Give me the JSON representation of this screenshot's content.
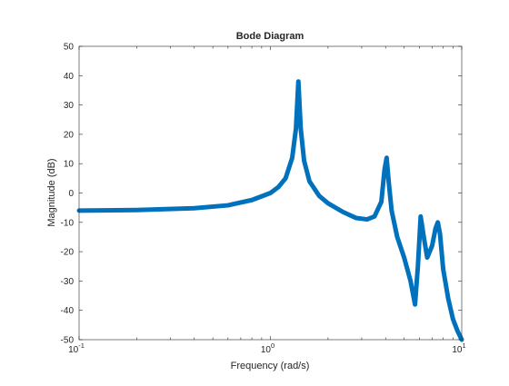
{
  "chart_data": {
    "type": "line",
    "title": "Bode Diagram",
    "xlabel": "Frequency  (rad/s)",
    "ylabel": "Magnitude (dB)",
    "xscale": "log",
    "xlim": [
      0.1,
      10
    ],
    "ylim": [
      -50,
      50
    ],
    "grid": false,
    "legend": "none",
    "x_ticks": [
      {
        "value": 0.1,
        "base": "10",
        "exp": "-1"
      },
      {
        "value": 1,
        "base": "10",
        "exp": "0"
      },
      {
        "value": 10,
        "base": "10",
        "exp": "1"
      }
    ],
    "y_ticks": [
      "50",
      "40",
      "30",
      "20",
      "10",
      "0",
      "-10",
      "-20",
      "-30",
      "-40",
      "-50"
    ],
    "series": [
      {
        "color": "#0072bd",
        "x": [
          0.1,
          0.2,
          0.4,
          0.6,
          0.8,
          1.0,
          1.1,
          1.2,
          1.3,
          1.36,
          1.4,
          1.44,
          1.5,
          1.6,
          1.8,
          2.0,
          2.4,
          2.8,
          3.2,
          3.5,
          3.8,
          3.95,
          4.05,
          4.15,
          4.3,
          4.6,
          5.0,
          5.4,
          5.7,
          5.9,
          6.1,
          6.3,
          6.6,
          7.0,
          7.3,
          7.5,
          7.7,
          8.0,
          8.5,
          9.0,
          9.5,
          10.0
        ],
        "y": [
          -6,
          -5.8,
          -5.2,
          -4.2,
          -2.4,
          0,
          2,
          5,
          12,
          22,
          38,
          22,
          11,
          4,
          -1,
          -3.5,
          -6.5,
          -8.5,
          -9,
          -8,
          -3,
          8,
          12,
          4,
          -6,
          -15,
          -22,
          -30,
          -38,
          -25,
          -8,
          -14,
          -22,
          -18,
          -12,
          -10,
          -14,
          -26,
          -36,
          -43,
          -47,
          -50
        ]
      }
    ]
  }
}
